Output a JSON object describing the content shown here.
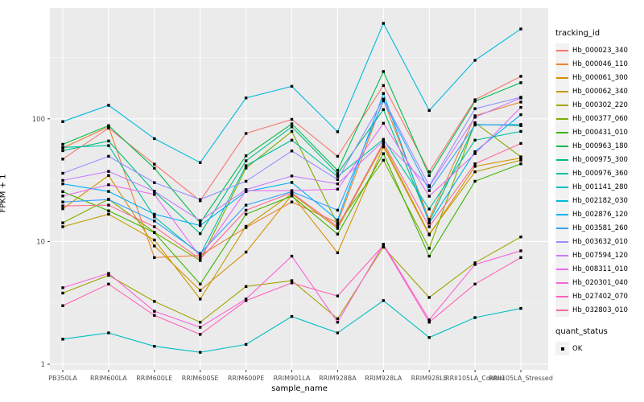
{
  "panel": {
    "bg_color": "#EBEBEB",
    "grid_color": "#FFFFFF",
    "tick_text_color": "#4D4D4D",
    "point_color": "#000000"
  },
  "chart_data": {
    "type": "line",
    "title": "",
    "xlabel": "sample_name",
    "ylabel": "FPKM + 1",
    "y_scale": "log10",
    "y_ticks": [
      1,
      10,
      100
    ],
    "y_minor": [
      3.16,
      31.6,
      316
    ],
    "ylim": [
      1,
      800
    ],
    "grid": true,
    "legend_position": "right",
    "legend_title": "tracking_id",
    "point_legend": {
      "title": "quant_status",
      "label": "OK",
      "shape": "square",
      "color": "#000000"
    },
    "categories": [
      "PB350LA",
      "RRIM600LA",
      "RRIM600LE",
      "RRIM600SE",
      "RRIM600PE",
      "RRIM901LA",
      "RRIM928BA",
      "RRIM928LA",
      "RRIM928LE",
      "RRII105LA_Control",
      "RRII105LA_Stressed"
    ],
    "series": [
      {
        "name": "Hb_000023_340",
        "color": "#F8766D",
        "values": [
          47,
          84,
          42.7,
          21.5,
          76,
          99,
          49.5,
          187,
          37,
          143,
          222
        ]
      },
      {
        "name": "Hb_000046_110",
        "color": "#EA8331",
        "values": [
          58,
          86,
          7.4,
          7.7,
          13,
          21,
          14.2,
          143,
          15.2,
          106,
          137
        ]
      },
      {
        "name": "Hb_000061_300",
        "color": "#D89000",
        "values": [
          18.5,
          34.5,
          9.2,
          4.0,
          8.2,
          24,
          8.1,
          59,
          11.3,
          41,
          48
        ]
      },
      {
        "name": "Hb_000062_340",
        "color": "#C09B00",
        "values": [
          13.2,
          16.7,
          10.3,
          3.4,
          13.3,
          24.5,
          12.8,
          62,
          11.5,
          37,
          46
        ]
      },
      {
        "name": "Hb_000302_220",
        "color": "#A3A500",
        "values": [
          3.8,
          5.3,
          3.25,
          2.2,
          4.3,
          4.8,
          2.35,
          9.0,
          3.5,
          6.7,
          10.9
        ]
      },
      {
        "name": "Hb_000377_060",
        "color": "#7CAE00",
        "values": [
          14.2,
          22.1,
          11.9,
          7.0,
          39.7,
          79,
          13.8,
          46,
          8.8,
          93,
          49
        ]
      },
      {
        "name": "Hb_000431_010",
        "color": "#39B600",
        "values": [
          25.5,
          17.8,
          11.8,
          4.5,
          16.7,
          23.5,
          11.5,
          52,
          7.6,
          31,
          43
        ]
      },
      {
        "name": "Hb_000963_180",
        "color": "#00BB4E",
        "values": [
          62,
          88,
          39.6,
          14.2,
          50,
          91,
          38,
          243,
          34.5,
          139,
          197
        ]
      },
      {
        "name": "Hb_000975_300",
        "color": "#00BF7D",
        "values": [
          55,
          66,
          25.5,
          11.6,
          45.5,
          86,
          35.8,
          119,
          14.5,
          90,
          88
        ]
      },
      {
        "name": "Hb_000976_360",
        "color": "#00C1A3",
        "values": [
          58.5,
          60.5,
          15.9,
          7.8,
          41.5,
          67,
          34,
          68,
          18.4,
          67,
          79
        ]
      },
      {
        "name": "Hb_001141_280",
        "color": "#00BFC4",
        "values": [
          1.6,
          1.8,
          1.4,
          1.25,
          1.45,
          2.45,
          1.8,
          3.3,
          1.65,
          2.4,
          2.85
        ]
      },
      {
        "name": "Hb_002182_030",
        "color": "#00BAE0",
        "values": [
          95,
          129,
          69,
          44,
          148,
          184,
          78.5,
          600,
          117,
          300,
          540
        ]
      },
      {
        "name": "Hb_002876_120",
        "color": "#00B0F6",
        "values": [
          29.5,
          25.6,
          16.7,
          13.5,
          25.5,
          30.3,
          15,
          161,
          14.1,
          54,
          108
        ]
      },
      {
        "name": "Hb_003581_260",
        "color": "#35A2FF",
        "values": [
          21,
          22,
          14.7,
          8.0,
          19.8,
          25.5,
          18,
          140,
          26,
          89,
          90
        ]
      },
      {
        "name": "Hb_003632_010",
        "color": "#9590FF",
        "values": [
          36,
          49.5,
          30.2,
          22,
          31,
          54.7,
          32,
          145,
          28.5,
          121,
          150
        ]
      },
      {
        "name": "Hb_007594_120",
        "color": "#C77CFF",
        "values": [
          31.5,
          37.3,
          25.7,
          14.8,
          26.5,
          34.2,
          29.5,
          66,
          28,
          103,
          148
        ]
      },
      {
        "name": "Hb_008311_010",
        "color": "#E76BF3",
        "values": [
          23.5,
          29,
          24.2,
          7.5,
          26,
          26,
          26.7,
          92,
          23.4,
          52,
          124
        ]
      },
      {
        "name": "Hb_020301_040",
        "color": "#FA62DB",
        "values": [
          4.2,
          5.5,
          2.7,
          2.0,
          3.4,
          7.6,
          2.2,
          9.5,
          2.3,
          6.5,
          8.4
        ]
      },
      {
        "name": "Hb_027402_070",
        "color": "#FF62BC",
        "values": [
          3.0,
          4.5,
          2.5,
          1.75,
          3.3,
          4.6,
          3.6,
          9.3,
          2.2,
          4.5,
          7.4
        ]
      },
      {
        "name": "Hb_032803_010",
        "color": "#FF6A98",
        "values": [
          19.5,
          19.8,
          13.2,
          7.2,
          18,
          25,
          13.2,
          64,
          13.2,
          43,
          63
        ]
      }
    ]
  }
}
